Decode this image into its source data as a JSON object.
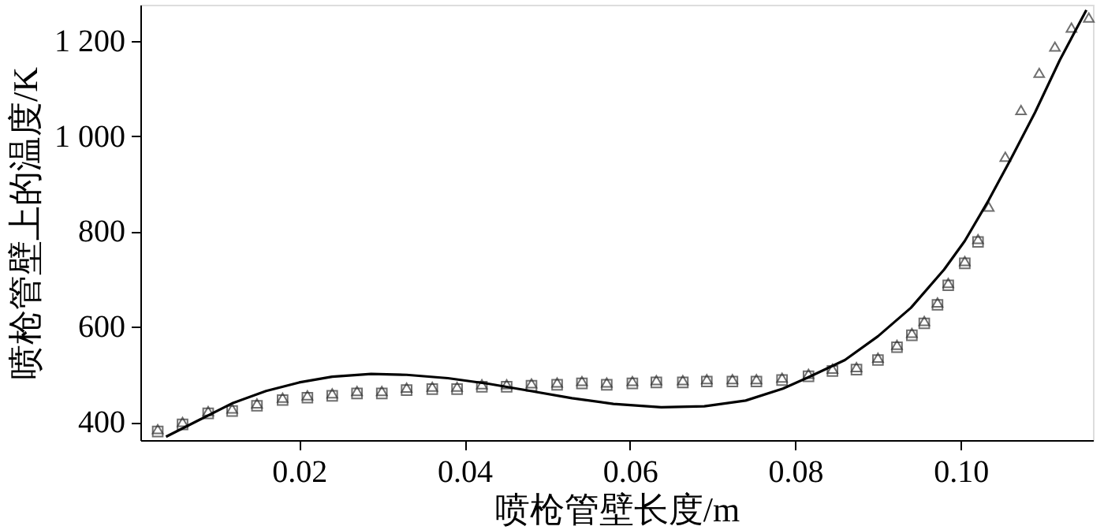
{
  "chart_data": {
    "type": "scatter",
    "xlabel": "喷枪管壁长度/m",
    "ylabel": "喷枪管壁上的温度/K",
    "xlim": [
      0.0008,
      0.116
    ],
    "xticks": [
      0.02,
      0.04,
      0.06,
      {
        "value": 0.08,
        "label": "0.08"
      },
      {
        "value": 0.1,
        "label": "0.10"
      }
    ],
    "ylim": [
      362,
      1276
    ],
    "yticks": [
      400,
      600,
      800,
      {
        "value": 1000,
        "label": "1 000"
      },
      {
        "value": 1200,
        "label": "1 200"
      }
    ],
    "grid": false,
    "series": [
      {
        "marker": "square",
        "color": "#333333",
        "x": [
          0.0029,
          0.0059,
          0.009,
          0.0119,
          0.0149,
          0.018,
          0.021,
          0.024,
          0.027,
          0.03,
          0.033,
          0.0361,
          0.0391,
          0.0421,
          0.0451,
          0.0481,
          0.0512,
          0.0542,
          0.0572,
          0.0603,
          0.0632,
          0.0664,
          0.0693,
          0.0724,
          0.0753,
          0.0784,
          0.0816,
          0.0845,
          0.0874,
          0.09,
          0.0923,
          0.0941,
          0.0956,
          0.0972,
          0.0985,
          0.1005,
          0.1021
        ],
        "values": [
          380,
          395,
          418,
          423,
          434,
          446,
          451,
          455,
          460,
          460,
          467,
          469,
          469,
          474,
          474,
          476,
          478,
          481,
          478,
          481,
          483,
          483,
          485,
          485,
          485,
          488,
          496,
          507,
          510,
          530,
          557,
          582,
          607,
          646,
          687,
          733,
          778
        ]
      },
      {
        "marker": "triangle",
        "color": "#333333",
        "x": [
          0.0029,
          0.0059,
          0.009,
          0.0119,
          0.0149,
          0.018,
          0.021,
          0.024,
          0.027,
          0.03,
          0.033,
          0.0361,
          0.0391,
          0.0421,
          0.0451,
          0.0481,
          0.0512,
          0.0542,
          0.0572,
          0.0603,
          0.0632,
          0.0664,
          0.0693,
          0.0724,
          0.0753,
          0.0784,
          0.0816,
          0.0845,
          0.0874,
          0.09,
          0.0923,
          0.0941,
          0.0956,
          0.0972,
          0.0985,
          0.1005,
          0.1021,
          0.1034,
          0.1054,
          0.1073,
          0.1095,
          0.1114,
          0.1134,
          0.1155
        ],
        "values": [
          385,
          400,
          423,
          428,
          439,
          451,
          456,
          460,
          465,
          465,
          472,
          474,
          474,
          479,
          479,
          481,
          483,
          486,
          483,
          486,
          488,
          488,
          490,
          490,
          490,
          493,
          501,
          512,
          515,
          535,
          562,
          587,
          612,
          651,
          692,
          738,
          784,
          852,
          957,
          1055,
          1133,
          1188,
          1228,
          1249
        ]
      },
      {
        "type": "line",
        "marker": "none",
        "line_style": "solid",
        "color": "#000000",
        "x": [
          0.0039,
          0.008,
          0.012,
          0.016,
          0.02,
          0.024,
          0.0287,
          0.033,
          0.038,
          0.043,
          0.048,
          0.053,
          0.058,
          0.0638,
          0.069,
          0.074,
          0.0785,
          0.0816,
          0.086,
          0.09,
          0.094,
          0.098,
          0.1005,
          0.1034,
          0.106,
          0.109,
          0.112,
          0.1152
        ],
        "values": [
          369,
          405,
          440,
          465,
          483,
          495,
          501,
          499,
          492,
          480,
          465,
          450,
          438,
          431,
          433,
          445,
          470,
          494,
          530,
          580,
          640,
          720,
          780,
          866,
          950,
          1050,
          1160,
          1265
        ]
      }
    ]
  }
}
